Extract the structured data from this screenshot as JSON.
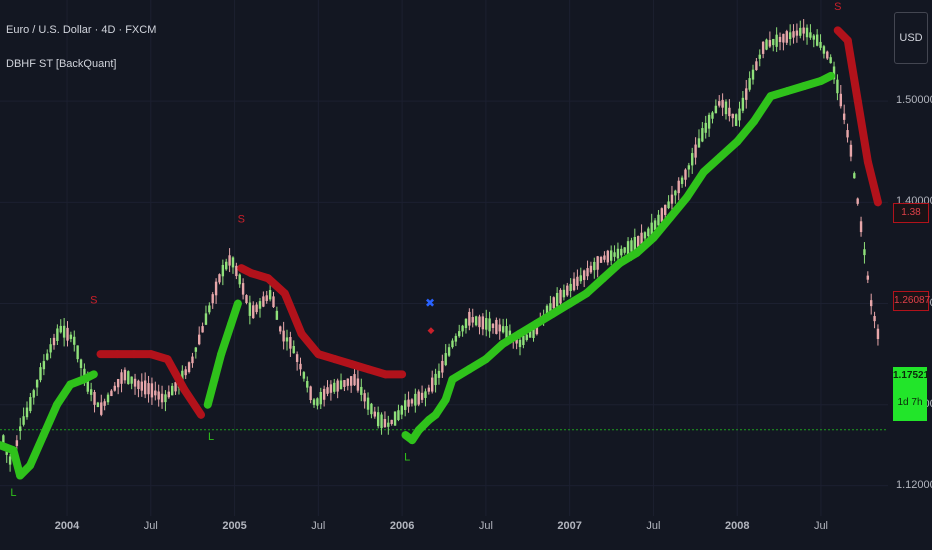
{
  "header": {
    "title": "Euro / U.S. Dollar · 4D · FXCM",
    "indicator": "DBHF ST [BackQuant]"
  },
  "currency_button": "USD",
  "colors": {
    "background": "#131722",
    "trend_up": "#2fc21b",
    "trend_down": "#b2121b",
    "candle_up": "#8fe07a",
    "candle_down": "#e8a7aa",
    "signal_long": "#2fc21b",
    "signal_short": "#c8202a",
    "price_line": "#1f9d1f",
    "marker_blue": "#2962ff"
  },
  "tags": {
    "band_value": "1.38",
    "last_close": "1.26087",
    "current_price": "1.17521",
    "countdown": "1d 7h"
  },
  "chart_data": {
    "type": "line",
    "title": "Euro / U.S. Dollar · 4D · FXCM",
    "x_tick_labels": [
      "2004",
      "Jul",
      "2005",
      "Jul",
      "2006",
      "Jul",
      "2007",
      "Jul",
      "2008",
      "Jul"
    ],
    "x_tick_dates": [
      2004.0,
      2004.5,
      2005.0,
      2005.5,
      2006.0,
      2006.5,
      2007.0,
      2007.5,
      2008.0,
      2008.5
    ],
    "y_tick_labels": [
      "1.50000",
      "1.40000",
      "1.30000",
      "1.20000",
      "1.12000"
    ],
    "y_tick_values": [
      1.5,
      1.4,
      1.3,
      1.2,
      1.12
    ],
    "xlim": [
      2003.6,
      2008.9
    ],
    "ylim": [
      1.09,
      1.6
    ],
    "price_line_value": 1.17521,
    "series": [
      {
        "role": "price",
        "x": [
          2003.62,
          2003.67,
          2003.72,
          2003.78,
          2003.84,
          2003.9,
          2003.96,
          2004.04,
          2004.12,
          2004.2,
          2004.28,
          2004.34,
          2004.42,
          2004.5,
          2004.58,
          2004.66,
          2004.74,
          2004.8,
          2004.86,
          2004.92,
          2004.98,
          2005.04,
          2005.1,
          2005.16,
          2005.22,
          2005.28,
          2005.34,
          2005.4,
          2005.48,
          2005.56,
          2005.64,
          2005.72,
          2005.8,
          2005.86,
          2005.92,
          2005.98,
          2006.02,
          2006.08,
          2006.14,
          2006.22,
          2006.3,
          2006.4,
          2006.5,
          2006.6,
          2006.7,
          2006.8,
          2006.9,
          2007.0,
          2007.1,
          2007.2,
          2007.3,
          2007.4,
          2007.5,
          2007.6,
          2007.7,
          2007.8,
          2007.9,
          2008.0,
          2008.08,
          2008.16,
          2008.24,
          2008.32,
          2008.4,
          2008.48,
          2008.56,
          2008.62,
          2008.68,
          2008.72,
          2008.76,
          2008.8,
          2008.84
        ],
        "y": [
          1.165,
          1.14,
          1.176,
          1.2,
          1.23,
          1.255,
          1.275,
          1.265,
          1.22,
          1.195,
          1.215,
          1.23,
          1.22,
          1.215,
          1.205,
          1.22,
          1.24,
          1.27,
          1.3,
          1.33,
          1.345,
          1.32,
          1.29,
          1.3,
          1.31,
          1.27,
          1.26,
          1.235,
          1.2,
          1.215,
          1.22,
          1.225,
          1.2,
          1.185,
          1.18,
          1.19,
          1.2,
          1.205,
          1.21,
          1.23,
          1.26,
          1.285,
          1.28,
          1.275,
          1.26,
          1.275,
          1.3,
          1.315,
          1.33,
          1.345,
          1.35,
          1.36,
          1.375,
          1.4,
          1.43,
          1.47,
          1.5,
          1.48,
          1.52,
          1.555,
          1.56,
          1.565,
          1.57,
          1.56,
          1.54,
          1.5,
          1.45,
          1.4,
          1.35,
          1.3,
          1.27
        ]
      },
      {
        "role": "trend_band",
        "x": [
          2003.6,
          2003.68,
          2003.72,
          2003.78,
          2003.86,
          2003.94,
          2004.02,
          2004.1,
          2004.16,
          2004.2,
          2004.3,
          2004.4,
          2004.5,
          2004.6,
          2004.7,
          2004.8,
          2004.84,
          2004.88,
          2004.92,
          2004.98,
          2005.02,
          2005.04,
          2005.1,
          2005.2,
          2005.3,
          2005.4,
          2005.5,
          2005.6,
          2005.7,
          2005.8,
          2005.9,
          2006.0,
          2006.02,
          2006.06,
          2006.1,
          2006.16,
          2006.2,
          2006.26,
          2006.3,
          2006.4,
          2006.5,
          2006.6,
          2006.7,
          2006.8,
          2006.9,
          2007.0,
          2007.1,
          2007.2,
          2007.3,
          2007.4,
          2007.5,
          2007.6,
          2007.7,
          2007.8,
          2007.9,
          2008.0,
          2008.1,
          2008.2,
          2008.3,
          2008.4,
          2008.5,
          2008.56,
          2008.6,
          2008.66,
          2008.72,
          2008.78,
          2008.84
        ],
        "y": [
          1.16,
          1.155,
          1.13,
          1.14,
          1.17,
          1.2,
          1.22,
          1.225,
          1.23,
          1.25,
          1.25,
          1.25,
          1.25,
          1.245,
          1.215,
          1.19,
          1.2,
          1.225,
          1.25,
          1.28,
          1.3,
          1.335,
          1.33,
          1.325,
          1.31,
          1.27,
          1.25,
          1.245,
          1.24,
          1.235,
          1.23,
          1.23,
          1.17,
          1.165,
          1.175,
          1.185,
          1.19,
          1.205,
          1.225,
          1.235,
          1.245,
          1.26,
          1.27,
          1.28,
          1.29,
          1.3,
          1.31,
          1.325,
          1.34,
          1.35,
          1.365,
          1.385,
          1.405,
          1.43,
          1.445,
          1.46,
          1.48,
          1.505,
          1.51,
          1.515,
          1.52,
          1.525,
          1.57,
          1.56,
          1.5,
          1.44,
          1.4
        ],
        "direction": [
          "up",
          "up",
          "up",
          "up",
          "up",
          "up",
          "up",
          "up",
          "up",
          "down",
          "down",
          "down",
          "down",
          "down",
          "down",
          "down",
          "up",
          "up",
          "up",
          "up",
          "up",
          "down",
          "down",
          "down",
          "down",
          "down",
          "down",
          "down",
          "down",
          "down",
          "down",
          "down",
          "up",
          "up",
          "up",
          "up",
          "up",
          "up",
          "up",
          "up",
          "up",
          "up",
          "up",
          "up",
          "up",
          "up",
          "up",
          "up",
          "up",
          "up",
          "up",
          "up",
          "up",
          "up",
          "up",
          "up",
          "up",
          "up",
          "up",
          "up",
          "up",
          "up",
          "down",
          "down",
          "down",
          "down",
          "down"
        ]
      }
    ],
    "signals": [
      {
        "label": "L",
        "x": 2003.68,
        "y": 1.11
      },
      {
        "label": "S",
        "x": 2004.16,
        "y": 1.3
      },
      {
        "label": "L",
        "x": 2004.86,
        "y": 1.165
      },
      {
        "label": "S",
        "x": 2005.04,
        "y": 1.38
      },
      {
        "label": "L",
        "x": 2006.03,
        "y": 1.145
      },
      {
        "label": "S",
        "x": 2008.6,
        "y": 1.59
      }
    ]
  }
}
